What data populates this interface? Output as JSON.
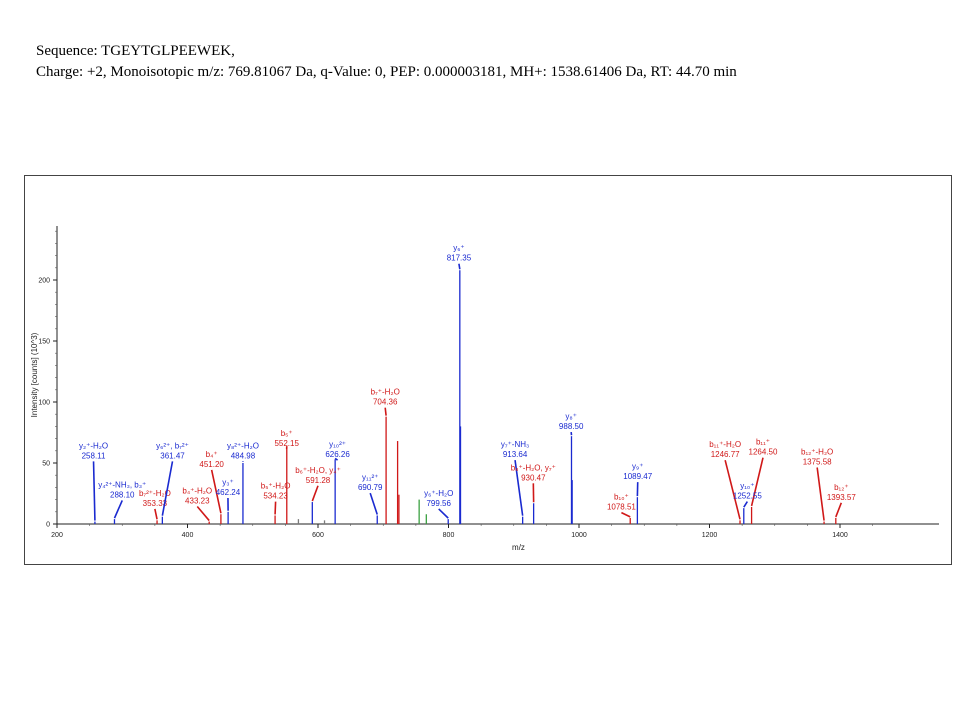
{
  "header": {
    "sequence": "Sequence: TGEYTGLPEEWEK,",
    "info": "Charge: +2, Monoisotopic m/z: 769.81067 Da, q-Value: 0, PEP: 0.000003181, MH+: 1538.61406 Da, RT: 44.70 min"
  },
  "chart_data": {
    "type": "bar",
    "xlabel": "m/z",
    "ylabel": "Intensity [counts] (10^3)",
    "xlim": [
      200,
      1500
    ],
    "ylim": [
      0,
      248
    ],
    "xticks": [
      200,
      400,
      600,
      800,
      1000,
      1200,
      1400
    ],
    "yticks": [
      0,
      50,
      100,
      150,
      200
    ],
    "colors": {
      "y": "#1a2ad0",
      "b": "#d01818",
      "other": "#7a7a7a",
      "green": "#3aa040"
    },
    "peaks": [
      {
        "mz": 258.11,
        "i": 2,
        "c": "y"
      },
      {
        "mz": 288.1,
        "i": 4,
        "c": "y"
      },
      {
        "mz": 353.33,
        "i": 3,
        "c": "b"
      },
      {
        "mz": 361.47,
        "i": 6,
        "c": "y"
      },
      {
        "mz": 433.23,
        "i": 2,
        "c": "b"
      },
      {
        "mz": 451.2,
        "i": 8,
        "c": "b"
      },
      {
        "mz": 462.24,
        "i": 10,
        "c": "y"
      },
      {
        "mz": 484.98,
        "i": 50,
        "c": "y"
      },
      {
        "mz": 534.23,
        "i": 7,
        "c": "b"
      },
      {
        "mz": 552.15,
        "i": 63,
        "c": "b"
      },
      {
        "mz": 570.0,
        "i": 4,
        "c": "other"
      },
      {
        "mz": 591.28,
        "i": 18,
        "c": "y"
      },
      {
        "mz": 610.0,
        "i": 3,
        "c": "other"
      },
      {
        "mz": 626.26,
        "i": 53,
        "c": "y"
      },
      {
        "mz": 690.79,
        "i": 7,
        "c": "y"
      },
      {
        "mz": 704.36,
        "i": 88,
        "c": "b"
      },
      {
        "mz": 722.0,
        "i": 68,
        "c": "b"
      },
      {
        "mz": 724.0,
        "i": 24,
        "c": "b"
      },
      {
        "mz": 755.0,
        "i": 20,
        "c": "green"
      },
      {
        "mz": 766.0,
        "i": 8,
        "c": "green"
      },
      {
        "mz": 799.56,
        "i": 4,
        "c": "y"
      },
      {
        "mz": 817.35,
        "i": 208,
        "c": "y"
      },
      {
        "mz": 818.4,
        "i": 80,
        "c": "y"
      },
      {
        "mz": 913.64,
        "i": 6,
        "c": "y"
      },
      {
        "mz": 930.47,
        "i": 17,
        "c": "y"
      },
      {
        "mz": 988.5,
        "i": 72,
        "c": "y"
      },
      {
        "mz": 989.5,
        "i": 36,
        "c": "y"
      },
      {
        "mz": 1078.51,
        "i": 5,
        "c": "b"
      },
      {
        "mz": 1089.47,
        "i": 22,
        "c": "y"
      },
      {
        "mz": 1246.77,
        "i": 3,
        "c": "b"
      },
      {
        "mz": 1252.55,
        "i": 13,
        "c": "y"
      },
      {
        "mz": 1264.5,
        "i": 14,
        "c": "b"
      },
      {
        "mz": 1375.58,
        "i": 2,
        "c": "b"
      },
      {
        "mz": 1393.57,
        "i": 5,
        "c": "b"
      }
    ],
    "annotations": [
      {
        "ion": "y₂⁺-H₂O",
        "mz": "258.11",
        "c": "y",
        "tx": 256,
        "ti": 62,
        "px": 258.11,
        "pi": 2
      },
      {
        "ion": "y₄²⁺-NH₃, b₃⁺",
        "mz": "288.10",
        "c": "y",
        "tx": 300,
        "ti": 30,
        "px": 288.1,
        "pi": 4
      },
      {
        "ion": "b₇²⁺-H₂O",
        "mz": "353.33",
        "c": "b",
        "tx": 350,
        "ti": 23,
        "px": 353.33,
        "pi": 3
      },
      {
        "ion": "y₆²⁺, b₇²⁺",
        "mz": "361.47",
        "c": "y",
        "tx": 377,
        "ti": 62,
        "px": 361.47,
        "pi": 6
      },
      {
        "ion": "b₄⁺",
        "mz": "451.20",
        "c": "b",
        "tx": 437,
        "ti": 55,
        "px": 451.2,
        "pi": 8
      },
      {
        "ion": "b₄⁺-H₂O",
        "mz": "433.23",
        "c": "b",
        "tx": 415,
        "ti": 25,
        "px": 433.23,
        "pi": 2
      },
      {
        "ion": "y₃⁺",
        "mz": "462.24",
        "c": "y",
        "tx": 462,
        "ti": 32,
        "px": 462.24,
        "pi": 10
      },
      {
        "ion": "y₈²⁺-H₂O",
        "mz": "484.98",
        "c": "y",
        "tx": 485,
        "ti": 62,
        "px": 484.98,
        "pi": 50
      },
      {
        "ion": "b₅⁺-H₂O",
        "mz": "534.23",
        "c": "b",
        "tx": 535,
        "ti": 29,
        "px": 534.23,
        "pi": 7
      },
      {
        "ion": "b₅⁺",
        "mz": "552.15",
        "c": "b",
        "tx": 552,
        "ti": 72,
        "px": 552.15,
        "pi": 63
      },
      {
        "ion": "b₆⁺-H₂O, y₄⁺",
        "mz": "591.28",
        "c": "b",
        "tx": 600,
        "ti": 42,
        "px": 591.28,
        "pi": 18
      },
      {
        "ion": "y₁₀²⁺",
        "mz": "626.26",
        "c": "y",
        "tx": 630,
        "ti": 63,
        "px": 626.26,
        "pi": 53
      },
      {
        "ion": "y₁₁²⁺",
        "mz": "690.79",
        "c": "y",
        "tx": 680,
        "ti": 36,
        "px": 690.79,
        "pi": 7
      },
      {
        "ion": "b₇⁺-H₂O",
        "mz": "704.36",
        "c": "b",
        "tx": 703,
        "ti": 106,
        "px": 704.36,
        "pi": 88
      },
      {
        "ion": "y₆⁺-H₂O",
        "mz": "799.56",
        "c": "y",
        "tx": 785,
        "ti": 23,
        "px": 799.56,
        "pi": 4
      },
      {
        "ion": "y₆⁺",
        "mz": "817.35",
        "c": "y",
        "tx": 816,
        "ti": 224,
        "px": 817.35,
        "pi": 208
      },
      {
        "ion": "y₇⁺-NH₃",
        "mz": "913.64",
        "c": "y",
        "tx": 902,
        "ti": 63,
        "px": 913.64,
        "pi": 6
      },
      {
        "ion": "b₈⁺-H₂O, y₇⁺",
        "mz": "930.47",
        "c": "b",
        "tx": 930,
        "ti": 44,
        "px": 930.47,
        "pi": 17
      },
      {
        "ion": "y₈⁺",
        "mz": "988.50",
        "c": "y",
        "tx": 988,
        "ti": 86,
        "px": 988.5,
        "pi": 72
      },
      {
        "ion": "y₉⁺",
        "mz": "1089.47",
        "c": "y",
        "tx": 1090,
        "ti": 45,
        "px": 1089.47,
        "pi": 22
      },
      {
        "ion": "b₁₀⁺",
        "mz": "1078.51",
        "c": "b",
        "tx": 1065,
        "ti": 20,
        "px": 1078.51,
        "pi": 5
      },
      {
        "ion": "b₁₁⁺-H₂O",
        "mz": "1246.77",
        "c": "b",
        "tx": 1224,
        "ti": 63,
        "px": 1246.77,
        "pi": 3
      },
      {
        "ion": "b₁₁⁺",
        "mz": "1264.50",
        "c": "b",
        "tx": 1282,
        "ti": 65,
        "px": 1264.5,
        "pi": 14
      },
      {
        "ion": "y₁₀⁺",
        "mz": "1252.55",
        "c": "y",
        "tx": 1258,
        "ti": 29,
        "px": 1252.55,
        "pi": 13
      },
      {
        "ion": "b₁₂⁺-H₂O",
        "mz": "1375.58",
        "c": "b",
        "tx": 1365,
        "ti": 57,
        "px": 1375.58,
        "pi": 2
      },
      {
        "ion": "b₁₂⁺",
        "mz": "1393.57",
        "c": "b",
        "tx": 1402,
        "ti": 28,
        "px": 1393.57,
        "pi": 5
      }
    ]
  }
}
